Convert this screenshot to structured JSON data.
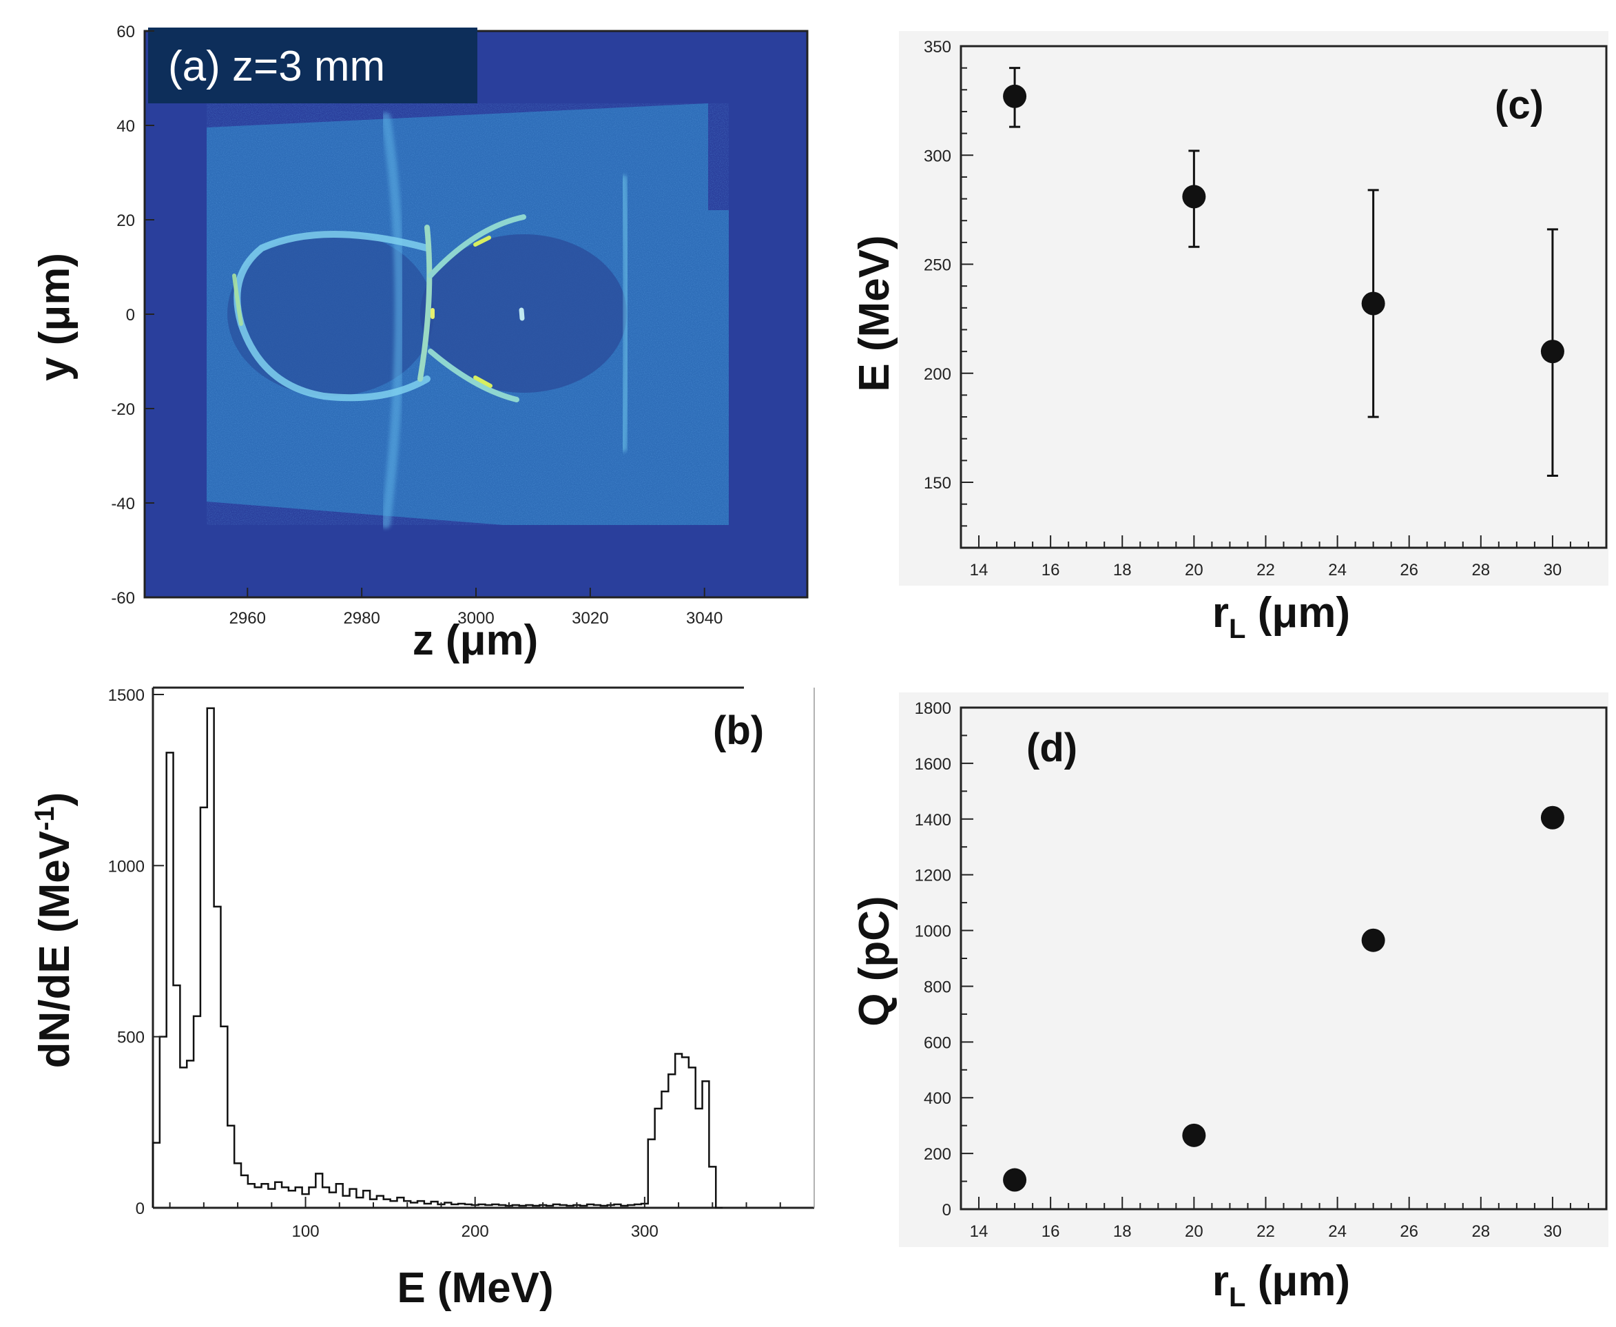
{
  "chart_data": [
    {
      "panel": "a",
      "type": "heatmap",
      "label": "(a) z=3 mm",
      "xlabel": "z (μm)",
      "ylabel": "y (μm)",
      "xlim": [
        2942,
        3058
      ],
      "ylim": [
        -60,
        60
      ],
      "x_ticks": [
        2960,
        2980,
        3000,
        3020,
        3040
      ],
      "y_ticks": [
        -60,
        -40,
        -20,
        0,
        20,
        40,
        60
      ],
      "colors": {
        "background": "#2a3f9c",
        "field": "#2f78c0",
        "bright": "#bfe25a",
        "label_box": "#0d2e5a"
      }
    },
    {
      "panel": "b",
      "type": "line",
      "label": "(b)",
      "xlabel": "E (MeV)",
      "ylabel": "dN/dE (MeV",
      "ylabel_sup": "-1",
      "ylabel_tail": ")",
      "xlim": [
        10,
        400
      ],
      "ylim": [
        0,
        1500
      ],
      "x_ticks": [
        100,
        200,
        300
      ],
      "y_ticks": [
        0,
        500,
        1000,
        1500
      ],
      "bin_width": 4,
      "x": [
        10,
        14,
        18,
        22,
        26,
        30,
        34,
        38,
        42,
        46,
        50,
        54,
        58,
        62,
        66,
        70,
        74,
        78,
        82,
        86,
        90,
        94,
        98,
        102,
        106,
        110,
        114,
        118,
        122,
        126,
        130,
        134,
        138,
        142,
        146,
        150,
        154,
        158,
        162,
        166,
        170,
        174,
        178,
        182,
        186,
        190,
        194,
        198,
        202,
        206,
        210,
        214,
        218,
        222,
        226,
        230,
        234,
        238,
        242,
        246,
        250,
        254,
        258,
        262,
        266,
        270,
        274,
        278,
        282,
        286,
        290,
        294,
        298,
        302,
        306,
        310,
        314,
        318,
        322,
        326,
        330,
        334,
        338,
        342
      ],
      "values": [
        190,
        500,
        1330,
        650,
        410,
        430,
        560,
        1170,
        1460,
        880,
        530,
        240,
        130,
        95,
        70,
        60,
        70,
        55,
        75,
        60,
        50,
        60,
        40,
        60,
        100,
        60,
        45,
        70,
        35,
        55,
        30,
        50,
        25,
        35,
        25,
        20,
        30,
        20,
        15,
        20,
        12,
        18,
        10,
        15,
        10,
        12,
        10,
        8,
        10,
        8,
        10,
        8,
        6,
        8,
        6,
        8,
        6,
        8,
        6,
        10,
        8,
        6,
        8,
        6,
        10,
        8,
        6,
        8,
        10,
        6,
        8,
        10,
        12,
        200,
        290,
        340,
        390,
        450,
        440,
        410,
        290,
        370,
        120,
        0
      ]
    },
    {
      "panel": "c",
      "type": "scatter",
      "label": "(c)",
      "xlabel": "r",
      "xlabel_sub": "L",
      "xlabel_tail": " (μm)",
      "ylabel": "E (MeV)",
      "xlim": [
        13.5,
        31.5
      ],
      "ylim": [
        120,
        350
      ],
      "x_ticks": [
        14,
        16,
        18,
        20,
        22,
        24,
        26,
        28,
        30
      ],
      "y_ticks": [
        150,
        200,
        250,
        300,
        350
      ],
      "series": [
        {
          "x": [
            15,
            20,
            25,
            30
          ],
          "y": [
            327,
            281,
            232,
            210
          ],
          "yerr_low": [
            313,
            258,
            180,
            153
          ],
          "yerr_high": [
            340,
            302,
            284,
            266
          ]
        }
      ]
    },
    {
      "panel": "d",
      "type": "scatter",
      "label": "(d)",
      "xlabel": "r",
      "xlabel_sub": "L",
      "xlabel_tail": " (μm)",
      "ylabel": "Q (pC)",
      "xlim": [
        13.5,
        31.5
      ],
      "ylim": [
        0,
        1800
      ],
      "x_ticks": [
        14,
        16,
        18,
        20,
        22,
        24,
        26,
        28,
        30
      ],
      "y_ticks": [
        0,
        200,
        400,
        600,
        800,
        1000,
        1200,
        1400,
        1600,
        1800
      ],
      "series": [
        {
          "x": [
            15,
            20,
            25,
            30
          ],
          "y": [
            105,
            265,
            965,
            1405
          ]
        }
      ]
    }
  ]
}
